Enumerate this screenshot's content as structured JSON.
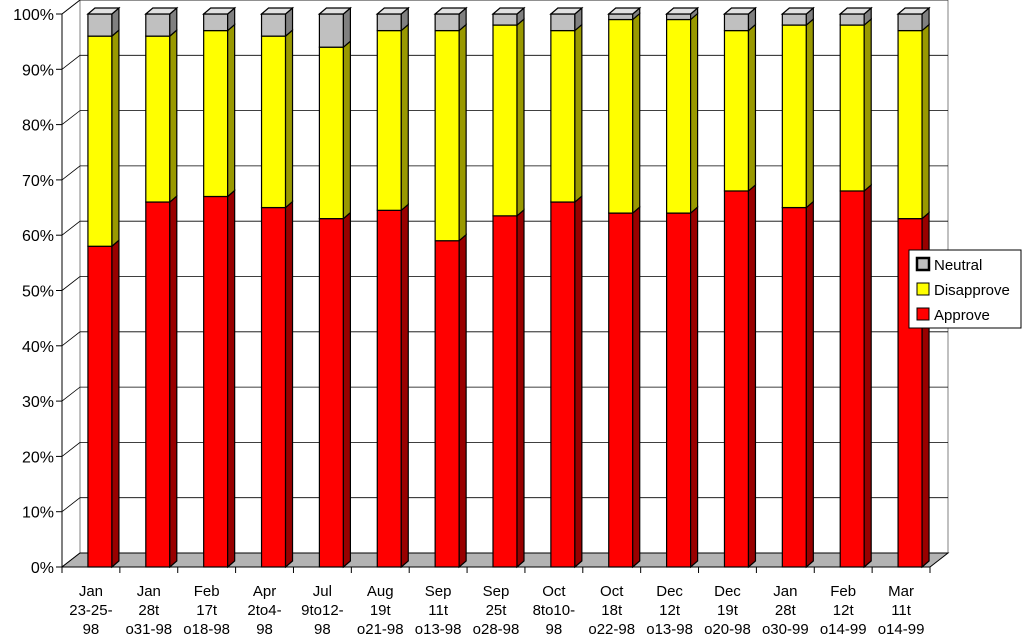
{
  "chart_data": {
    "type": "bar",
    "stacked": true,
    "percent_stacked": true,
    "three_d": true,
    "categories": [
      [
        "Jan",
        "23-25-",
        "98"
      ],
      [
        "Jan",
        "28t",
        "o31-98"
      ],
      [
        "Feb",
        "17t",
        "o18-98"
      ],
      [
        "Apr",
        "2to4-",
        "98"
      ],
      [
        "Jul",
        "9to12-",
        "98"
      ],
      [
        "Aug",
        "19t",
        "o21-98"
      ],
      [
        "Sep",
        "11t",
        "o13-98"
      ],
      [
        "Sep",
        "25t",
        "o28-98"
      ],
      [
        "Oct",
        "8to10-",
        "98"
      ],
      [
        "Oct",
        "18t",
        "o22-98"
      ],
      [
        "Dec",
        "12t",
        "o13-98"
      ],
      [
        "Dec",
        "19t",
        "o20-98"
      ],
      [
        "Jan",
        "28t",
        "o30-99"
      ],
      [
        "Feb",
        "12t",
        "o14-99"
      ],
      [
        "Mar",
        "11t",
        "o14-99"
      ]
    ],
    "series": [
      {
        "name": "Approve",
        "color": "#ff0000",
        "side_color": "#990000",
        "values": [
          58,
          66,
          67,
          65,
          63,
          64.5,
          59,
          63.5,
          66,
          64,
          64,
          68,
          65,
          68,
          63
        ]
      },
      {
        "name": "Disapprove",
        "color": "#ffff00",
        "side_color": "#999900",
        "values": [
          38,
          30,
          30,
          31,
          31,
          32.5,
          38,
          34.5,
          31,
          35,
          35,
          29,
          33,
          30,
          34
        ]
      },
      {
        "name": "Neutral",
        "color": "#c0c0c0",
        "side_color": "#808080",
        "values": [
          4,
          4,
          3,
          4,
          6,
          3,
          3,
          2,
          3,
          1,
          1,
          3,
          2,
          2,
          3
        ]
      }
    ],
    "y_ticks": [
      "0%",
      "10%",
      "20%",
      "30%",
      "40%",
      "50%",
      "60%",
      "70%",
      "80%",
      "90%",
      "100%"
    ],
    "ylim": [
      0,
      100
    ],
    "grid": true,
    "legend_position": "right",
    "legend": [
      "Neutral",
      "Disapprove",
      "Approve"
    ]
  }
}
